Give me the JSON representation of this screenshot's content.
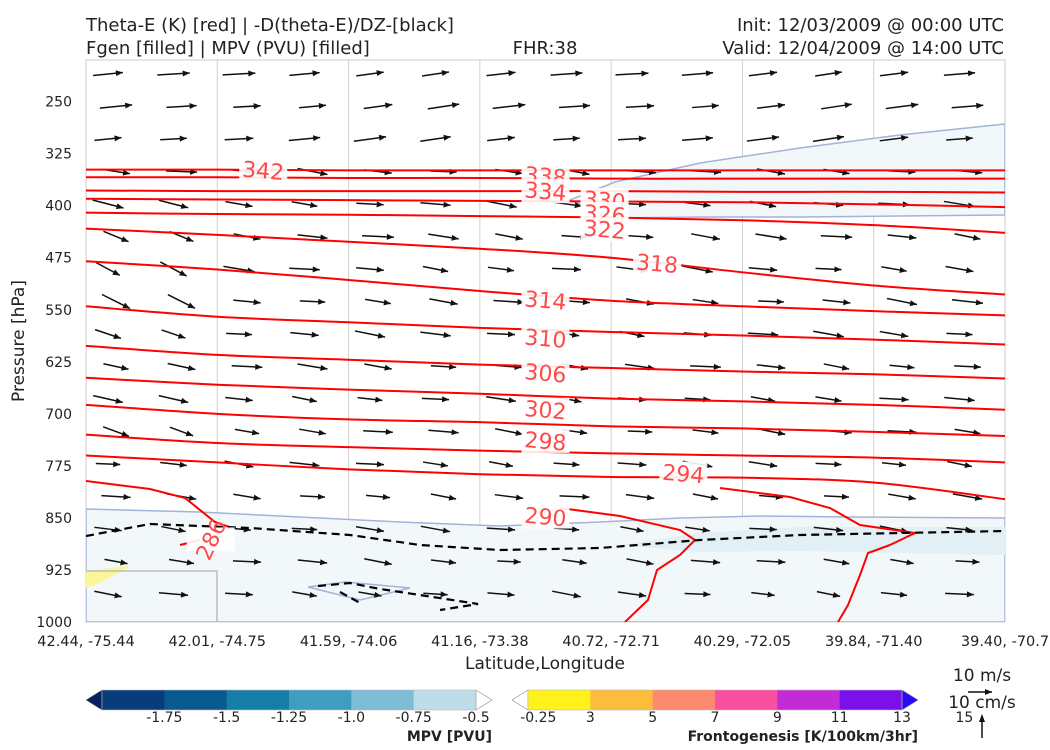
{
  "header": {
    "title_left_1": "Theta-E (K) [red] | -D(theta-E)/DZ-[black]",
    "title_left_2": "Fgen [filled] | MPV (PVU) [filled]",
    "fhr": "FHR:38",
    "init": "Init: 12/03/2009 @ 00:00 UTC",
    "valid": "Valid: 12/04/2009 @ 14:00 UTC"
  },
  "chart_data": {
    "type": "cross-section",
    "xlabel": "Latitude,Longitude",
    "ylabel": "Pressure [hPa]",
    "x_ticks": [
      "42.44, -75.44",
      "42.01, -74.75",
      "41.59, -74.06",
      "41.16, -73.38",
      "40.72, -72.71",
      "40.29, -72.05",
      "39.84, -71.40",
      "39.40, -70.7"
    ],
    "y_ticks": [
      250,
      325,
      400,
      475,
      550,
      625,
      700,
      775,
      850,
      925,
      1000
    ],
    "ylim": [
      1000,
      190
    ],
    "theta_e_contours": [
      {
        "value": 294,
        "points": [
          [
            0,
            760
          ],
          [
            1,
            770
          ],
          [
            2,
            780
          ],
          [
            3,
            787
          ],
          [
            4,
            791
          ],
          [
            5,
            792
          ],
          [
            6,
            799
          ],
          [
            7,
            823
          ]
        ]
      },
      {
        "value": 298,
        "points": [
          [
            0,
            730
          ],
          [
            1,
            742
          ],
          [
            2,
            748
          ],
          [
            3,
            753
          ],
          [
            4,
            757
          ],
          [
            5,
            760
          ],
          [
            6,
            763
          ],
          [
            7,
            770
          ]
        ]
      },
      {
        "value": 302,
        "points": [
          [
            0,
            687
          ],
          [
            1,
            700
          ],
          [
            2,
            708
          ],
          [
            3,
            712
          ],
          [
            4,
            718
          ],
          [
            5,
            721
          ],
          [
            6,
            726
          ],
          [
            7,
            732
          ]
        ]
      },
      {
        "value": 306,
        "points": [
          [
            0,
            648
          ],
          [
            1,
            658
          ],
          [
            2,
            665
          ],
          [
            3,
            671
          ],
          [
            4,
            678
          ],
          [
            5,
            682
          ],
          [
            6,
            687
          ],
          [
            7,
            694
          ]
        ]
      },
      {
        "value": 310,
        "points": [
          [
            0,
            602
          ],
          [
            1,
            615
          ],
          [
            2,
            622
          ],
          [
            3,
            629
          ],
          [
            4,
            634
          ],
          [
            5,
            639
          ],
          [
            6,
            643
          ],
          [
            7,
            649
          ]
        ]
      },
      {
        "value": 314,
        "points": [
          [
            0,
            545
          ],
          [
            1,
            560
          ],
          [
            2,
            568
          ],
          [
            3,
            576
          ],
          [
            4,
            582
          ],
          [
            5,
            587
          ],
          [
            6,
            593
          ],
          [
            7,
            600
          ]
        ]
      },
      {
        "value": 318,
        "points": [
          [
            0,
            480
          ],
          [
            1,
            492
          ],
          [
            2,
            507
          ],
          [
            3,
            523
          ],
          [
            4,
            537
          ],
          [
            5,
            545
          ],
          [
            6,
            552
          ],
          [
            7,
            558
          ]
        ]
      },
      {
        "value": 322,
        "points": [
          [
            0,
            433
          ],
          [
            1,
            442
          ],
          [
            2,
            452
          ],
          [
            3,
            462
          ],
          [
            4,
            475
          ],
          [
            5,
            496
          ],
          [
            6,
            515
          ],
          [
            7,
            528
          ]
        ]
      },
      {
        "value": 326,
        "points": [
          [
            0,
            410
          ],
          [
            1,
            412
          ],
          [
            2,
            413
          ],
          [
            3,
            415
          ],
          [
            4,
            417
          ],
          [
            5,
            421
          ],
          [
            6,
            428
          ],
          [
            7,
            439
          ]
        ]
      },
      {
        "value": 330,
        "points": [
          [
            0,
            390
          ],
          [
            1,
            391
          ],
          [
            2,
            392
          ],
          [
            3,
            393
          ],
          [
            4,
            394
          ],
          [
            5,
            395
          ],
          [
            6,
            398
          ],
          [
            7,
            402
          ]
        ]
      },
      {
        "value": 334,
        "points": [
          [
            0,
            378
          ],
          [
            1,
            379
          ],
          [
            2,
            379
          ],
          [
            3,
            379
          ],
          [
            4,
            379
          ],
          [
            5,
            380
          ],
          [
            6,
            380
          ],
          [
            7,
            381
          ]
        ]
      },
      {
        "value": 338,
        "points": [
          [
            0,
            359
          ],
          [
            1,
            359
          ],
          [
            2,
            360
          ],
          [
            3,
            360
          ],
          [
            4,
            361
          ],
          [
            5,
            361
          ],
          [
            6,
            361
          ],
          [
            7,
            361
          ]
        ]
      },
      {
        "value": 342,
        "points": [
          [
            0,
            348
          ],
          [
            1,
            348
          ],
          [
            2,
            349
          ],
          [
            3,
            349
          ],
          [
            4,
            349
          ],
          [
            5,
            349
          ],
          [
            6,
            349
          ],
          [
            7,
            349
          ]
        ]
      }
    ],
    "theta_e_labels": [
      {
        "text": "342",
        "x": 1.35,
        "y": 349
      },
      {
        "text": "338",
        "x": 3.5,
        "y": 357
      },
      {
        "text": "334",
        "x": 3.5,
        "y": 379
      },
      {
        "text": "330",
        "x": 3.95,
        "y": 392
      },
      {
        "text": "326",
        "x": 3.95,
        "y": 412
      },
      {
        "text": "322",
        "x": 3.95,
        "y": 434
      },
      {
        "text": "318",
        "x": 4.35,
        "y": 483
      },
      {
        "text": "314",
        "x": 3.5,
        "y": 536
      },
      {
        "text": "310",
        "x": 3.5,
        "y": 591
      },
      {
        "text": "306",
        "x": 3.5,
        "y": 641
      },
      {
        "text": "302",
        "x": 3.5,
        "y": 694
      },
      {
        "text": "298",
        "x": 3.5,
        "y": 739
      },
      {
        "text": "294",
        "x": 4.55,
        "y": 786
      },
      {
        "text": "290",
        "x": 3.5,
        "y": 848
      },
      {
        "text": "286",
        "x": 0.95,
        "y": 881
      }
    ],
    "mpv_legend": {
      "label": "MPV [PVU]",
      "ticks": [
        "-1.75",
        "-1.5",
        "-1.25",
        "-1.0",
        "-0.75",
        "-0.5",
        "-0.25"
      ],
      "colors": [
        "#08215e",
        "#083c7a",
        "#0a5a92",
        "#157ea8",
        "#3f9ec0",
        "#7dbdd6",
        "#bddde8",
        "#ffffff"
      ]
    },
    "fgen_legend": {
      "label": "Frontogenesis [K/100km/3hr]",
      "ticks": [
        "3",
        "5",
        "7",
        "9",
        "11",
        "13",
        "15"
      ],
      "colors": [
        "#ffffff",
        "#fff21a",
        "#fdbd3c",
        "#fb8a6e",
        "#f8509e",
        "#c32bd6",
        "#7a10ea",
        "#2a0cf4"
      ]
    },
    "vector_key": {
      "label_horizontal": "10 m/s",
      "label_vertical": "10 cm/s"
    }
  }
}
